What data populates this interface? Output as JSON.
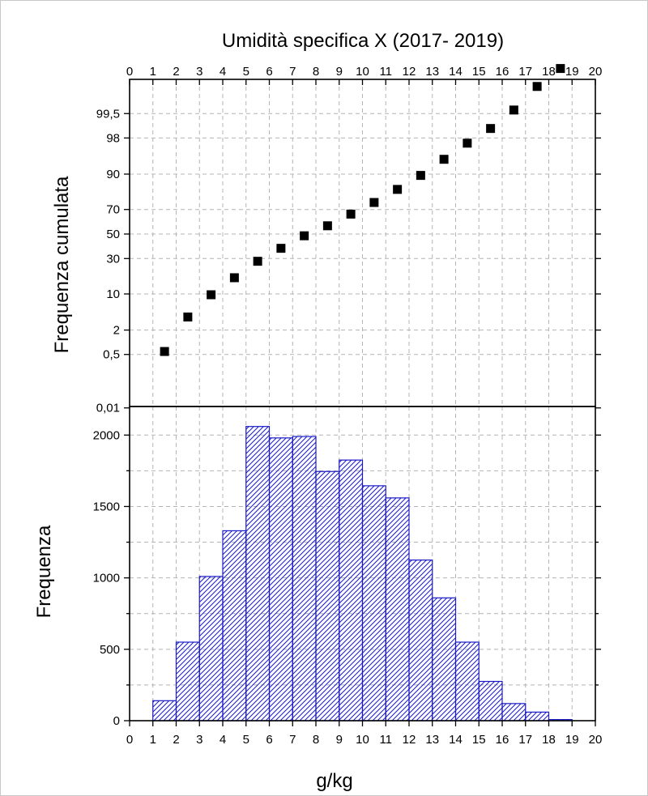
{
  "chart_data": {
    "type": "composite",
    "title": "Umidità specifica X (2017- 2019)",
    "xlabel": "g/kg",
    "xlim": [
      0,
      20
    ],
    "x_ticks": [
      0,
      1,
      2,
      3,
      4,
      5,
      6,
      7,
      8,
      9,
      10,
      11,
      12,
      13,
      14,
      15,
      16,
      17,
      18,
      19,
      20
    ],
    "grid": true,
    "top_panel": {
      "type": "scatter",
      "ylabel": "Frequenza cumulata",
      "y_scale": "probability",
      "y_ticks": [
        {
          "value": 0.01,
          "label": "0,01"
        },
        {
          "value": 0.5,
          "label": "0,5"
        },
        {
          "value": 2,
          "label": "2"
        },
        {
          "value": 10,
          "label": "10"
        },
        {
          "value": 30,
          "label": "30"
        },
        {
          "value": 50,
          "label": "50"
        },
        {
          "value": 70,
          "label": "70"
        },
        {
          "value": 90,
          "label": "90"
        },
        {
          "value": 98,
          "label": "98"
        },
        {
          "value": 99.5,
          "label": "99,5"
        }
      ],
      "points": [
        {
          "x": 1.5,
          "y": 0.6
        },
        {
          "x": 2.5,
          "y": 3.8
        },
        {
          "x": 3.5,
          "y": 9.7
        },
        {
          "x": 4.5,
          "y": 17.5
        },
        {
          "x": 5.5,
          "y": 28
        },
        {
          "x": 6.5,
          "y": 38
        },
        {
          "x": 7.5,
          "y": 48.5
        },
        {
          "x": 8.5,
          "y": 57
        },
        {
          "x": 9.5,
          "y": 66.5
        },
        {
          "x": 10.5,
          "y": 75
        },
        {
          "x": 11.5,
          "y": 83
        },
        {
          "x": 12.5,
          "y": 89.5
        },
        {
          "x": 13.5,
          "y": 94.5
        },
        {
          "x": 14.5,
          "y": 97.4
        },
        {
          "x": 15.5,
          "y": 98.8
        },
        {
          "x": 16.5,
          "y": 99.6
        },
        {
          "x": 17.5,
          "y": 99.92
        },
        {
          "x": 18.5,
          "y": 99.98
        }
      ]
    },
    "bottom_panel": {
      "type": "bar",
      "ylabel": "Frequenza",
      "ylim": [
        0,
        2200
      ],
      "y_ticks": [
        0,
        500,
        1000,
        1500,
        2000
      ],
      "bars": [
        {
          "x0": 1,
          "x1": 2,
          "value": 140
        },
        {
          "x0": 2,
          "x1": 3,
          "value": 550
        },
        {
          "x0": 3,
          "x1": 4,
          "value": 1010
        },
        {
          "x0": 4,
          "x1": 5,
          "value": 1330
        },
        {
          "x0": 5,
          "x1": 6,
          "value": 2060
        },
        {
          "x0": 6,
          "x1": 7,
          "value": 1980
        },
        {
          "x0": 7,
          "x1": 8,
          "value": 1990
        },
        {
          "x0": 8,
          "x1": 9,
          "value": 1745
        },
        {
          "x0": 9,
          "x1": 10,
          "value": 1825
        },
        {
          "x0": 10,
          "x1": 11,
          "value": 1645
        },
        {
          "x0": 11,
          "x1": 12,
          "value": 1560
        },
        {
          "x0": 12,
          "x1": 13,
          "value": 1125
        },
        {
          "x0": 13,
          "x1": 14,
          "value": 860
        },
        {
          "x0": 14,
          "x1": 15,
          "value": 550
        },
        {
          "x0": 15,
          "x1": 16,
          "value": 275
        },
        {
          "x0": 16,
          "x1": 17,
          "value": 120
        },
        {
          "x0": 17,
          "x1": 18,
          "value": 60
        },
        {
          "x0": 18,
          "x1": 19,
          "value": 8
        }
      ],
      "colors": {
        "bar_stroke": "#1a1ac8",
        "bar_hatch": "#1a1ac8",
        "marker": "#000000"
      }
    }
  }
}
